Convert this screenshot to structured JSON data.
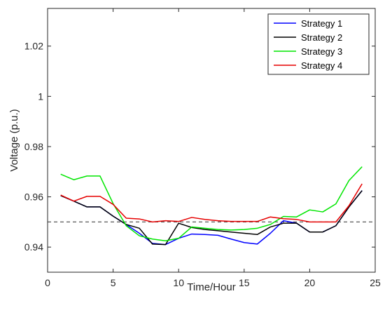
{
  "chart_data": {
    "type": "line",
    "title": "",
    "xlabel": "Time/Hour",
    "ylabel": "Voltage (p.u.)",
    "xlim": [
      0,
      25
    ],
    "ylim": [
      0.93,
      1.035
    ],
    "xticks": [
      0,
      5,
      10,
      15,
      20,
      25
    ],
    "xtick_labels": [
      "0",
      "5",
      "10",
      "15",
      "20",
      "25"
    ],
    "yticks": [
      0.94,
      0.96,
      0.98,
      1.0,
      1.02
    ],
    "ytick_labels": [
      "0.94",
      "0.96",
      "0.98",
      "1",
      "1.02"
    ],
    "grid": false,
    "legend_position": "top-right",
    "x": [
      1,
      2,
      3,
      4,
      5,
      6,
      7,
      8,
      9,
      10,
      11,
      12,
      13,
      14,
      15,
      16,
      17,
      18,
      19,
      20,
      21,
      22,
      23,
      24
    ],
    "reference_line": {
      "y": 0.95,
      "style": "dashed",
      "color": "#555555"
    },
    "series": [
      {
        "name": "Strategy 1",
        "color": "#0000ff",
        "values": [
          0.9605,
          0.9583,
          0.956,
          0.956,
          0.9523,
          0.949,
          0.9455,
          0.9415,
          0.941,
          0.9435,
          0.9452,
          0.945,
          0.9447,
          0.9432,
          0.9418,
          0.9412,
          0.9455,
          0.9505,
          0.9495,
          0.946,
          0.946,
          0.9485,
          0.956,
          0.9625
        ]
      },
      {
        "name": "Strategy 2",
        "color": "#000000",
        "values": [
          0.9605,
          0.9583,
          0.956,
          0.956,
          0.9523,
          0.949,
          0.9475,
          0.9412,
          0.941,
          0.9495,
          0.9478,
          0.947,
          0.9465,
          0.946,
          0.9455,
          0.945,
          0.948,
          0.9495,
          0.9495,
          0.946,
          0.946,
          0.9485,
          0.956,
          0.9625
        ]
      },
      {
        "name": "Strategy 3",
        "color": "#00e600",
        "values": [
          0.969,
          0.9668,
          0.9683,
          0.9683,
          0.9573,
          0.9485,
          0.9445,
          0.9432,
          0.9425,
          0.9435,
          0.948,
          0.9475,
          0.947,
          0.9468,
          0.947,
          0.9475,
          0.949,
          0.9522,
          0.952,
          0.9548,
          0.954,
          0.9572,
          0.9665,
          0.972
        ]
      },
      {
        "name": "Strategy 4",
        "color": "#e60000",
        "values": [
          0.9607,
          0.9583,
          0.9602,
          0.9602,
          0.957,
          0.9515,
          0.9512,
          0.95,
          0.9505,
          0.9502,
          0.9518,
          0.951,
          0.9505,
          0.9502,
          0.9502,
          0.9502,
          0.952,
          0.9513,
          0.951,
          0.95,
          0.95,
          0.95,
          0.9565,
          0.9652
        ]
      }
    ]
  }
}
